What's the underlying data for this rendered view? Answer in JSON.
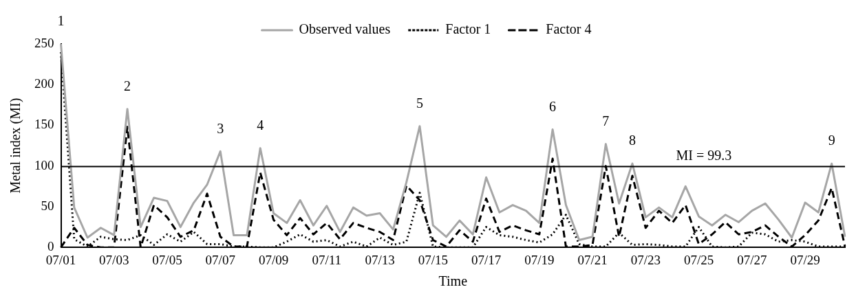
{
  "chart_data": {
    "type": "line",
    "xlabel": "Time",
    "ylabel": "Metal index (MI)",
    "categories": [
      "07/01",
      null,
      null,
      null,
      "07/03",
      null,
      null,
      null,
      "07/05",
      null,
      null,
      null,
      "07/07",
      null,
      null,
      null,
      "07/09",
      null,
      null,
      null,
      "07/11",
      null,
      null,
      null,
      "07/13",
      null,
      null,
      null,
      "07/15",
      null,
      null,
      null,
      "07/17",
      null,
      null,
      null,
      "07/19",
      null,
      null,
      null,
      "07/21",
      null,
      null,
      null,
      "07/23",
      null,
      null,
      null,
      "07/25",
      null,
      null,
      null,
      "07/27",
      null,
      null,
      null,
      "07/29",
      null,
      null,
      null
    ],
    "series": [
      {
        "name": "Observed values",
        "color": "#a6a6a6",
        "line_style": "solid",
        "values": [
          250,
          49,
          12,
          24,
          15,
          170,
          25,
          61,
          57,
          25,
          55,
          77,
          118,
          15,
          15,
          122,
          42,
          30,
          58,
          27,
          51,
          19,
          49,
          39,
          42,
          22,
          80,
          149,
          27,
          13,
          33,
          16,
          86,
          43,
          52,
          45,
          30,
          145,
          52,
          9,
          13,
          127,
          54,
          103,
          37,
          49,
          37,
          75,
          38,
          27,
          40,
          31,
          45,
          54,
          34,
          12,
          55,
          43,
          103,
          13
        ]
      },
      {
        "name": "Factor 1",
        "color": "#000000",
        "line_style": "dotted",
        "values": [
          240,
          10,
          1,
          13,
          10,
          9,
          15,
          3,
          16,
          7,
          19,
          4,
          4,
          1,
          1,
          0,
          0,
          7,
          16,
          7,
          9,
          1,
          7,
          1,
          12,
          3,
          7,
          67,
          1,
          0,
          0,
          0,
          25,
          15,
          13,
          9,
          6,
          16,
          40,
          4,
          1,
          1,
          18,
          3,
          4,
          3,
          1,
          1,
          25,
          1,
          0,
          1,
          18,
          16,
          7,
          9,
          7,
          1,
          1,
          1
        ]
      },
      {
        "name": "Factor 4",
        "color": "#000000",
        "line_style": "dashed",
        "values": [
          0,
          24,
          3,
          0,
          0,
          148,
          0,
          52,
          37,
          13,
          21,
          66,
          13,
          1,
          1,
          92,
          34,
          15,
          36,
          16,
          30,
          10,
          30,
          24,
          19,
          9,
          76,
          58,
          9,
          1,
          21,
          7,
          60,
          19,
          27,
          21,
          16,
          109,
          1,
          1,
          3,
          100,
          13,
          88,
          24,
          45,
          30,
          52,
          4,
          16,
          31,
          16,
          19,
          27,
          13,
          1,
          15,
          33,
          73,
          1
        ]
      }
    ],
    "ylim": [
      0,
      250
    ],
    "yticks": [
      0,
      50,
      100,
      150,
      200,
      250
    ],
    "ref_lines": [
      {
        "axis": "y",
        "value": 99.3,
        "label": "MI = 99.3",
        "color": "#000000"
      }
    ],
    "annotations": [
      "1",
      "2",
      "3",
      "4",
      "5",
      "6",
      "7",
      "8",
      "9"
    ],
    "grid": false,
    "legend": "top",
    "marker": "none"
  }
}
